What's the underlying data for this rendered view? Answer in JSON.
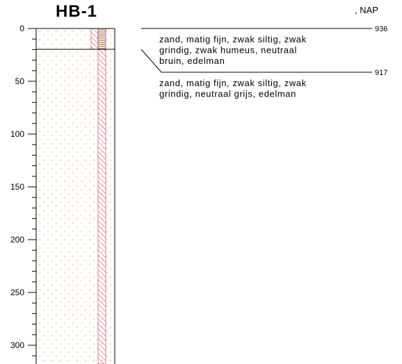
{
  "header": {
    "title": "HB-1",
    "datum": ", NAP"
  },
  "depth_axis": {
    "ticks": [
      0,
      50,
      100,
      150,
      200,
      250,
      300
    ]
  },
  "layers": [
    {
      "code": "936",
      "description": [
        "zand, matig fijn, zwak siltig, zwak",
        "grindig, zwak humeus, neutraal",
        "bruin, edelman"
      ]
    },
    {
      "code": "917",
      "description": [
        "zand, matig fijn, zwak siltig, zwak",
        "grindig, neutraal grijs, edelman"
      ]
    }
  ]
}
